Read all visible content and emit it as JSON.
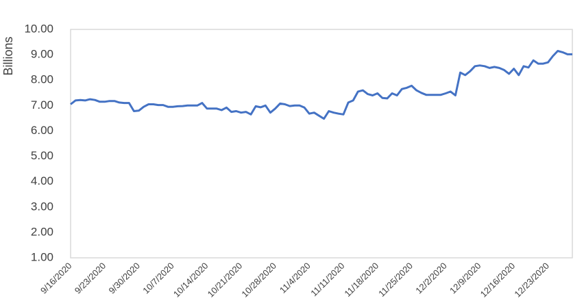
{
  "chart_data": {
    "type": "line",
    "y_label": "Billions",
    "categories": [
      "9/16/2020",
      null,
      null,
      null,
      null,
      null,
      null,
      "9/23/2020",
      null,
      null,
      null,
      null,
      null,
      null,
      "9/30/2020",
      null,
      null,
      null,
      null,
      null,
      null,
      "10/7/2020",
      null,
      null,
      null,
      null,
      null,
      null,
      "10/14/2020",
      null,
      null,
      null,
      null,
      null,
      null,
      "10/21/2020",
      null,
      null,
      null,
      null,
      null,
      null,
      "10/28/2020",
      null,
      null,
      null,
      null,
      null,
      null,
      "11/4/2020",
      null,
      null,
      null,
      null,
      null,
      null,
      "11/11/2020",
      null,
      null,
      null,
      null,
      null,
      null,
      "11/18/2020",
      null,
      null,
      null,
      null,
      null,
      null,
      "11/25/2020",
      null,
      null,
      null,
      null,
      null,
      null,
      "12/2/2020",
      null,
      null,
      null,
      null,
      null,
      null,
      "12/9/2020",
      null,
      null,
      null,
      null,
      null,
      null,
      "12/16/2020",
      null,
      null,
      null,
      null,
      null,
      null,
      "12/23/2020",
      null,
      null,
      null,
      null,
      null
    ],
    "series": [
      {
        "color": "#4472c4",
        "values": [
          7.05,
          7.2,
          7.22,
          7.2,
          7.25,
          7.22,
          7.15,
          7.15,
          7.18,
          7.18,
          7.12,
          7.1,
          7.1,
          6.78,
          6.8,
          6.95,
          7.05,
          7.05,
          7.02,
          7.02,
          6.95,
          6.95,
          6.97,
          6.98,
          7.0,
          7.0,
          7.0,
          7.1,
          6.88,
          6.88,
          6.88,
          6.82,
          6.92,
          6.75,
          6.78,
          6.72,
          6.75,
          6.65,
          6.97,
          6.93,
          7.0,
          6.72,
          6.88,
          7.08,
          7.05,
          6.98,
          7.0,
          7.0,
          6.92,
          6.68,
          6.72,
          6.6,
          6.48,
          6.78,
          6.72,
          6.68,
          6.65,
          7.12,
          7.2,
          7.55,
          7.6,
          7.45,
          7.4,
          7.48,
          7.3,
          7.28,
          7.48,
          7.4,
          7.65,
          7.7,
          7.78,
          7.6,
          7.5,
          7.42,
          7.42,
          7.42,
          7.42,
          7.48,
          7.55,
          7.4,
          8.3,
          8.2,
          8.35,
          8.55,
          8.58,
          8.55,
          8.48,
          8.52,
          8.48,
          8.4,
          8.25,
          8.45,
          8.2,
          8.55,
          8.5,
          8.78,
          8.65,
          8.65,
          8.7,
          8.95,
          9.15,
          9.1,
          9.02,
          9.02
        ]
      }
    ],
    "ylim": [
      1,
      10
    ],
    "yticks": [
      {
        "value": 1,
        "label": "1.00"
      },
      {
        "value": 2,
        "label": "2.00"
      },
      {
        "value": 3,
        "label": "3.00"
      },
      {
        "value": 4,
        "label": "4.00"
      },
      {
        "value": 5,
        "label": "5.00"
      },
      {
        "value": 6,
        "label": "6.00"
      },
      {
        "value": 7,
        "label": "7.00"
      },
      {
        "value": 8,
        "label": "8.00"
      },
      {
        "value": 9,
        "label": "9.00"
      },
      {
        "value": 10,
        "label": "10.00"
      }
    ],
    "grid": false
  }
}
